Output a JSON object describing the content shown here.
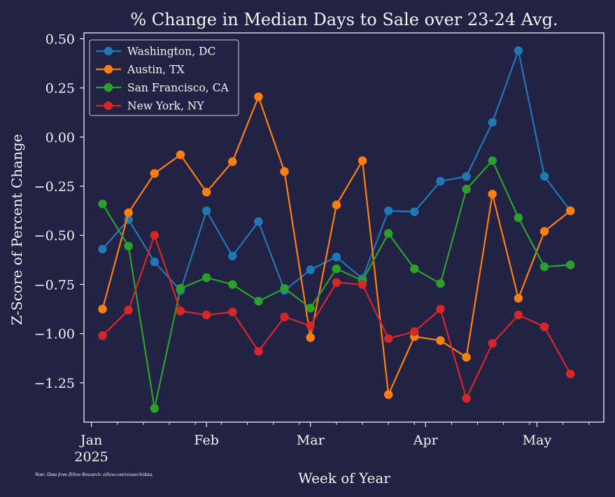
{
  "chart_data": {
    "type": "line",
    "title": "% Change in Median Days to Sale over 23-24 Avg.",
    "xlabel": "Week of Year",
    "ylabel": "Z-Score of Percent Change",
    "note": "Note: Data from Zillow Research: zillow.com/research/data.",
    "ylim": [
      -1.45,
      0.53
    ],
    "y_ticks": [
      "0.50",
      "0.25",
      "0.00",
      "−0.25",
      "−0.50",
      "−0.75",
      "−1.00",
      "−1.25"
    ],
    "y_tick_values": [
      0.5,
      0.25,
      0.0,
      -0.25,
      -0.5,
      -0.75,
      -1.0,
      -1.25
    ],
    "x_dates": [
      "2025-01-04",
      "2025-01-11",
      "2025-01-18",
      "2025-01-25",
      "2025-02-01",
      "2025-02-08",
      "2025-02-15",
      "2025-02-22",
      "2025-03-01",
      "2025-03-08",
      "2025-03-15",
      "2025-03-22",
      "2025-03-29",
      "2025-04-05",
      "2025-04-12",
      "2025-04-19",
      "2025-04-26",
      "2025-05-03",
      "2025-05-10"
    ],
    "x_major_ticks": [
      {
        "date": "2025-01-01",
        "label": "Jan",
        "sublabel": "2025"
      },
      {
        "date": "2025-02-01",
        "label": "Feb",
        "sublabel": ""
      },
      {
        "date": "2025-03-01",
        "label": "Mar",
        "sublabel": ""
      },
      {
        "date": "2025-04-01",
        "label": "Apr",
        "sublabel": ""
      },
      {
        "date": "2025-05-01",
        "label": "May",
        "sublabel": ""
      }
    ],
    "x_minor_ticks": [
      "2025-01-08",
      "2025-01-15",
      "2025-01-22",
      "2025-01-29",
      "2025-02-05",
      "2025-02-12",
      "2025-02-19",
      "2025-02-26",
      "2025-03-08",
      "2025-03-15",
      "2025-03-22",
      "2025-03-29",
      "2025-04-08",
      "2025-04-15",
      "2025-04-22",
      "2025-04-29",
      "2025-05-08",
      "2025-05-15"
    ],
    "grid": false,
    "legend_position": "top-left",
    "series": [
      {
        "name": "Washington, DC",
        "color": "#1f77b4",
        "values": [
          -0.57,
          -0.42,
          -0.635,
          -0.78,
          -0.375,
          -0.605,
          -0.43,
          -0.78,
          -0.675,
          -0.61,
          -0.72,
          -0.375,
          -0.38,
          -0.225,
          -0.2,
          0.075,
          0.44,
          -0.2,
          -0.375
        ]
      },
      {
        "name": "Austin, TX",
        "color": "#ff7f0e",
        "values": [
          -0.875,
          -0.385,
          -0.185,
          -0.09,
          -0.28,
          -0.125,
          0.205,
          -0.175,
          -1.02,
          -0.345,
          -0.12,
          -1.31,
          -1.015,
          -1.035,
          -1.12,
          -0.29,
          -0.82,
          -0.48,
          -0.375
        ]
      },
      {
        "name": "San Francisco, CA",
        "color": "#2ca02c",
        "values": [
          -0.34,
          -0.555,
          -1.38,
          -0.77,
          -0.715,
          -0.75,
          -0.835,
          -0.77,
          -0.87,
          -0.67,
          -0.73,
          -0.49,
          -0.67,
          -0.745,
          -0.265,
          -0.12,
          -0.41,
          -0.66,
          -0.65
        ]
      },
      {
        "name": "New York, NY",
        "color": "#d62728",
        "values": [
          -1.01,
          -0.88,
          -0.5,
          -0.885,
          -0.905,
          -0.89,
          -1.09,
          -0.915,
          -0.96,
          -0.74,
          -0.75,
          -1.025,
          -0.99,
          -0.875,
          -1.33,
          -1.05,
          -0.905,
          -0.965,
          -1.205
        ]
      }
    ]
  }
}
